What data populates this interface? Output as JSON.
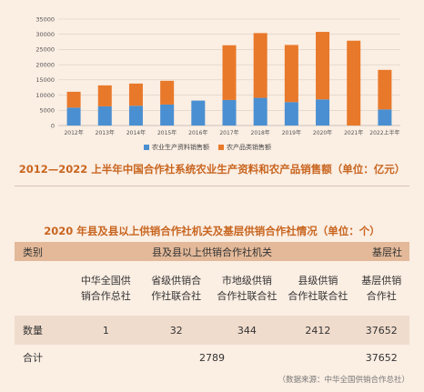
{
  "chart_data": {
    "type": "bar",
    "stacked": true,
    "categories": [
      "2012年",
      "2013年",
      "2014年",
      "2015年",
      "2016年",
      "2017年",
      "2018年",
      "2019年",
      "2020年",
      "2021年",
      "2022上半年"
    ],
    "series": [
      {
        "name": "农业生产资料销售额",
        "color": "#4a8fd1",
        "values": [
          5900,
          6300,
          6500,
          6900,
          8200,
          8400,
          9100,
          7700,
          8600,
          0,
          5300
        ]
      },
      {
        "name": "农产品类销售额",
        "color": "#e8792a",
        "values": [
          5200,
          6900,
          7300,
          7800,
          0,
          18000,
          21300,
          18800,
          22200,
          27900,
          13000
        ]
      }
    ],
    "yticks": [
      0,
      5000,
      10000,
      15000,
      20000,
      25000,
      30000,
      35000
    ],
    "ylim": [
      0,
      35000
    ],
    "legend_position": "bottom",
    "title": "2012—2022 上半年中国合作社系统农业生产资料和农产品销售额（单位：亿元）"
  },
  "table": {
    "title": "2020 年县及县以上供销合作社机关及基层供销合作社情况（单位：个）",
    "header": {
      "category": "类别",
      "group": "县及县以上供销合作社机关",
      "grassroots": "基层社"
    },
    "subheaders": [
      [
        "中华全国供",
        "销合作总社"
      ],
      [
        "省级供销合",
        "作社联合社"
      ],
      [
        "市地级供销",
        "合作社联合社"
      ],
      [
        "县级供销",
        "合作社联合社"
      ],
      [
        "基层供销",
        "合作社"
      ]
    ],
    "count_row": {
      "label": "数量",
      "values": [
        "1",
        "32",
        "344",
        "2412",
        "37652"
      ]
    },
    "total_row": {
      "label": "合计",
      "group_total": "2789",
      "grassroots_total": "37652"
    }
  },
  "source": "（数据来源：中华全国供销合作总社）"
}
